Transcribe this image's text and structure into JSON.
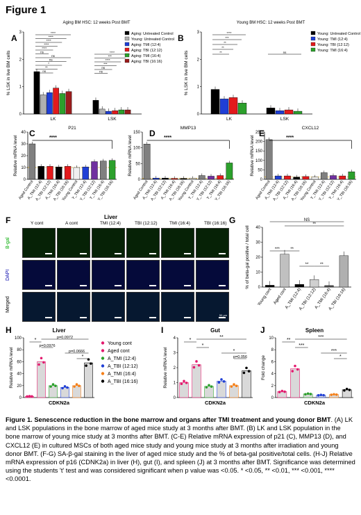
{
  "figure_title": "Figure 1",
  "panels": {
    "A": {
      "letter": "A",
      "title": "Aging BM HSC: 12 weeks Post BMT"
    },
    "B": {
      "letter": "B",
      "title": "Young BM HSC: 12 weeks Post BMT"
    },
    "C": {
      "letter": "C"
    },
    "D": {
      "letter": "D"
    },
    "E": {
      "letter": "E"
    },
    "F": {
      "letter": "F",
      "title": "Liver",
      "columns": [
        "Y cont",
        "A cont",
        "TMI (12:4)",
        "TBI (12:12)",
        "TMI (16:4)",
        "TBI (16:16)"
      ],
      "rows": [
        "B-gal",
        "DAPI",
        "Merged"
      ],
      "scale": "50 µm"
    },
    "G": {
      "letter": "G"
    },
    "H": {
      "letter": "H"
    },
    "I": {
      "letter": "I"
    },
    "J": {
      "letter": "J"
    }
  },
  "chart_data": [
    {
      "id": "A",
      "type": "bar",
      "title": "Aging BM HSC: 12 weeks Post BMT",
      "ylabel": "% LSK in live BM cells",
      "ylim": [
        0,
        3
      ],
      "yticks": [
        "0",
        "1",
        "2",
        "3"
      ],
      "categories": [
        "LK",
        "LSK"
      ],
      "series": [
        {
          "name": "Aging: Untreated Control",
          "color": "#000000",
          "values": [
            1.55,
            0.5
          ]
        },
        {
          "name": "Young: Untreated Control",
          "color": "#b0b0b0",
          "values": [
            0.7,
            0.18
          ]
        },
        {
          "name": "Aging: TMI (12:4)",
          "color": "#1f3fd6",
          "values": [
            0.78,
            0.1
          ]
        },
        {
          "name": "Aging: TBI (12:12)",
          "color": "#e31a1c",
          "values": [
            0.95,
            0.12
          ]
        },
        {
          "name": "Aging: TMI (16:4)",
          "color": "#2ca02c",
          "values": [
            0.75,
            0.15
          ]
        },
        {
          "name": "Aging: TBI (16:16)",
          "color": "#9b1c1c",
          "values": [
            0.82,
            0.15
          ]
        }
      ],
      "sig_labels": [
        "****",
        "****",
        "****",
        "****",
        "****",
        "ns",
        "ns",
        "ns",
        "*",
        "**",
        "ns",
        "****",
        "***",
        "****",
        "***",
        "ns",
        "ns"
      ]
    },
    {
      "id": "B",
      "type": "bar",
      "title": "Young BM HSC: 12 weeks Post BMT",
      "ylabel": "% LSK in live BM cells",
      "ylim": [
        0,
        3
      ],
      "yticks": [
        "0",
        "1",
        "2",
        "3"
      ],
      "categories": [
        "LK",
        "LSK"
      ],
      "series": [
        {
          "name": "Young: Untreated Control",
          "color": "#000000",
          "values": [
            0.9,
            0.22
          ]
        },
        {
          "name": "Young: TMI (12:4)",
          "color": "#1f3fd6",
          "values": [
            0.55,
            0.12
          ]
        },
        {
          "name": "Young: TBI (12:12)",
          "color": "#e31a1c",
          "values": [
            0.6,
            0.15
          ]
        },
        {
          "name": "Young: TMI (16:4)",
          "color": "#2ca02c",
          "values": [
            0.4,
            0.1
          ]
        }
      ],
      "sig_labels": [
        "****",
        "***",
        "**",
        "**",
        "**",
        "ns"
      ]
    },
    {
      "id": "C",
      "type": "bar",
      "title": "P21",
      "ylabel": "Relative mRNA level",
      "ylim": [
        0,
        40
      ],
      "yticks": [
        "0",
        "10",
        "20",
        "30",
        "40"
      ],
      "categories": [
        "Aged Control",
        "A_TMI (12:4)",
        "A_TBI (12:12)",
        "A_TMI (16:4)",
        "A_TBI (16:16)",
        "Young Control",
        "Y_TMI (12:4)",
        "Y_TBI (12:12)",
        "Y_TMI (16:4)",
        "Y_TBI (16:16)"
      ],
      "values": [
        30,
        11,
        11,
        10.5,
        11,
        10,
        10.5,
        15,
        15.5,
        16
      ],
      "colors": [
        "#808080",
        "#000000",
        "#e31a1c",
        "#000000",
        "#e31a1c",
        "#f0f0f0",
        "#1f3fd6",
        "#7030a0",
        "#808080",
        "#2ca02c"
      ],
      "sig_labels": [
        "****"
      ]
    },
    {
      "id": "D",
      "type": "bar",
      "title": "MMP13",
      "ylabel": "Relative mRNA level",
      "ylim": [
        0,
        150
      ],
      "yticks": [
        "0",
        "50",
        "100",
        "150"
      ],
      "categories": [
        "Aged Control",
        "A_TMI (12:4)",
        "A_TBI (12:12)",
        "A_TMI (16:4)",
        "A_TBI (16:16)",
        "Young Control",
        "Y_TMI (12:4)",
        "Y_TBI (12:12)",
        "Y_TMI (16:4)",
        "Y_TBI (16:16)"
      ],
      "values": [
        112,
        4,
        4,
        3,
        3,
        3,
        12,
        10,
        12,
        52
      ],
      "colors": [
        "#808080",
        "#1f3fd6",
        "#000000",
        "#e31a1c",
        "#000000",
        "#f0f0f0",
        "#808080",
        "#7030a0",
        "#e31a1c",
        "#2ca02c"
      ],
      "sig_labels": [
        "****"
      ]
    },
    {
      "id": "E",
      "type": "bar",
      "title": "CXCL12",
      "ylabel": "Relative mRNA level",
      "ylim": [
        0,
        250
      ],
      "yticks": [
        "0",
        "50",
        "100",
        "150",
        "200",
        "250"
      ],
      "categories": [
        "Aged Control",
        "A_TMI (12:4)",
        "A_TBI (12:12)",
        "A_TMI (16:4)",
        "A_TBI (16:16)",
        "Young Control",
        "Y_TMI (12:4)",
        "Y_TBI (12:12)",
        "Y_TMI (16:4)",
        "Y_TBI (16:16)"
      ],
      "values": [
        210,
        18,
        18,
        12,
        15,
        12,
        35,
        20,
        18,
        40
      ],
      "colors": [
        "#808080",
        "#1f3fd6",
        "#e31a1c",
        "#000000",
        "#e31a1c",
        "#f0f0f0",
        "#808080",
        "#7030a0",
        "#e31a1c",
        "#2ca02c"
      ],
      "sig_labels": [
        "****"
      ]
    },
    {
      "id": "G",
      "type": "bar",
      "ylabel": "% of beta-gal positive / total cell",
      "ylim": [
        0,
        40
      ],
      "yticks": [
        "0",
        "10",
        "20",
        "30",
        "40"
      ],
      "categories": [
        "Young cont",
        "Aged cont",
        "A_TMI (12:4)",
        "A_TBI (12:12)",
        "A_TMI (16:4)",
        "A_TBI (16:16)"
      ],
      "values": [
        1.2,
        22,
        1.8,
        5,
        1,
        21
      ],
      "colors": [
        "#000000",
        "#c0c0c0",
        "#000000",
        "#d0d0d0",
        "#505050",
        "#b0b0b0"
      ],
      "sig_labels": [
        "***",
        "**",
        "**",
        "**",
        "**",
        "NS"
      ]
    },
    {
      "id": "H",
      "type": "scatter",
      "title": "Liver",
      "ylabel": "Relative mRNA level",
      "xlabel": "CDKN2a",
      "ylim": [
        0,
        100
      ],
      "yticks": [
        "0",
        "20",
        "40",
        "60",
        "80",
        "100"
      ],
      "series": [
        {
          "name": "Young cont",
          "color": "#e31a6e",
          "value": 2
        },
        {
          "name": "Aged cont",
          "color": "#e31a6e",
          "value": 60
        },
        {
          "name": "A_TMI (12:4)",
          "color": "#2ca02c",
          "value": 20
        },
        {
          "name": "A_TBI (12:12)",
          "color": "#1f3fd6",
          "value": 17
        },
        {
          "name": "A_TMI (16:4)",
          "color": "#f57f17",
          "value": 20
        },
        {
          "name": "A_TBI (16:16)",
          "color": "#000000",
          "value": 58
        }
      ],
      "sig_labels": [
        "*",
        "p=0.0976",
        "p=0.0972",
        "p=0.0666",
        "*"
      ]
    },
    {
      "id": "I",
      "type": "scatter",
      "title": "Gut",
      "ylabel": "Relative mRNA level",
      "xlabel": "CDKN2a",
      "ylim": [
        0,
        4
      ],
      "yticks": [
        "0",
        "1",
        "2",
        "3",
        "4"
      ],
      "values": [
        1.0,
        2.2,
        0.75,
        1.1,
        0.8,
        1.8
      ],
      "sig_labels": [
        "*",
        "*",
        "**",
        "*",
        "p=0.056"
      ]
    },
    {
      "id": "J",
      "type": "scatter",
      "title": "Spleen",
      "ylabel": "Fold change",
      "xlabel": "CDKN2a",
      "ylim": [
        0,
        10
      ],
      "yticks": [
        "0",
        "2",
        "4",
        "6",
        "8",
        "10"
      ],
      "values": [
        1.0,
        4.8,
        0.6,
        0.4,
        0.5,
        1.3
      ],
      "sig_labels": [
        "**",
        "***",
        "***",
        "***",
        "*"
      ]
    }
  ],
  "caption": {
    "bold": "Figure 1. Senescence reduction in the bone marrow and organs after TMI treatment and young donor BMT",
    "text": ". (A) LK and LSK populations in the bone marrow of aged mice study at 3 months after BMT. (B) LK and LSK population in the bone marrow of young mice study at 3 months after BMT. (C-E) Relative mRNA expression of p21 (C), MMP13 (D), and CXCL12 (E) in cultured MSCs of both aged mice study and young mice study at 3 months after irradiation and young donor BMT. (F-G) SA-β-gal staining in the liver of aged mice study and the % of beta-gal positive/total cells. (H-J) Relative mRNA expression of p16 (CDNK2a) in liver (H), gut (I), and spleen (J) at 3 months after BMT. Significance was determined using the students 't' test and was considered significant when p value was <0.05. * <0.05, ** <0.01, *** <0.001, **** <0.0001."
  }
}
